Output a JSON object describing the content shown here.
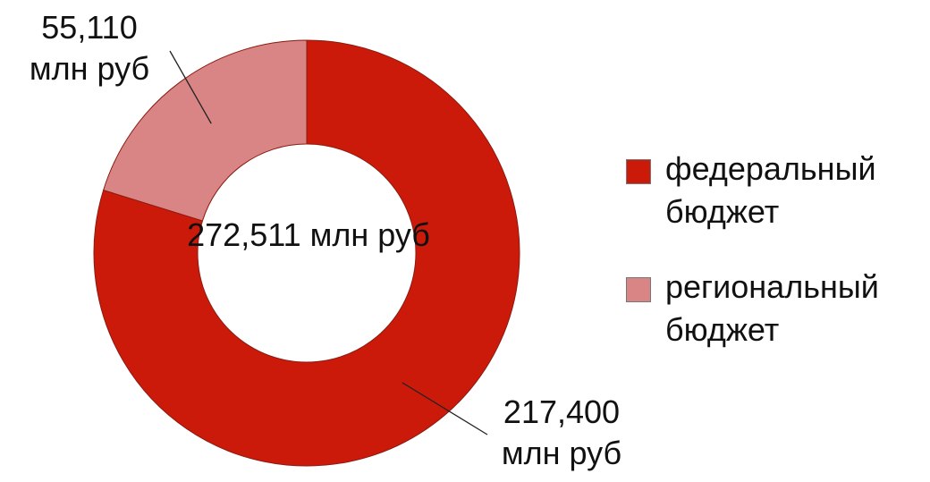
{
  "chart_data": {
    "type": "donut",
    "categories": [
      "федеральный бюджет",
      "региональный бюджет"
    ],
    "values": [
      217.4,
      55.11
    ],
    "value_labels": [
      "217,400\nмлн руб",
      "55,110\nмлн руб"
    ],
    "colors": [
      "#cc1a0a",
      "#d98585"
    ],
    "center_label": "272,511 млн руб",
    "legend": "right"
  }
}
